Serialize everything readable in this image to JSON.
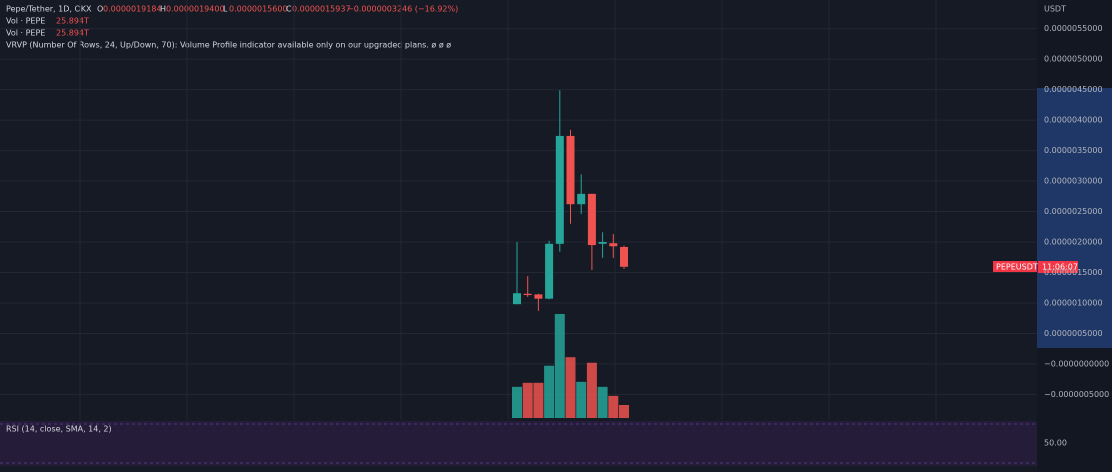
{
  "chart_data": {
    "type": "candlestick",
    "symbol": "Pepe/Tether, 1D, OKX",
    "ohlc_labels": [
      "O",
      "H",
      "L",
      "C"
    ],
    "ohlc_values": [
      "0.0000019184",
      "0.0000019400",
      "0.0000015600",
      "0.0000015937"
    ],
    "change": "−0.0000003246 (−16.92%)",
    "volume_legend": [
      "Vol · PEPE",
      "Vol · PEPE"
    ],
    "volume_value_label": [
      "25.894T",
      "25.894T"
    ],
    "vrvp": "VRVP (Number Of Rows, 24, Up/Down, 70): Volume Profile indicator available only on our upgraded plans.  ø  ø  ø",
    "currency": "USDT",
    "ticker_badge": "PEPEUSDT",
    "countdown": "11:06:07",
    "rsi_title": "RSI (14, close, SMA, 14, 2)",
    "rsi_tick": "50.00",
    "up_color": "#26a69a",
    "down_color": "#ef5350",
    "open": [
      9.8e-07,
      1.15e-06,
      1.14e-06,
      1.07e-06,
      1.97e-06,
      3.74e-06,
      2.62e-06,
      2.79e-06,
      1.97e-06,
      1.98e-06,
      1.9184e-06
    ],
    "high": [
      2e-06,
      1.44e-06,
      1.15e-06,
      2.02e-06,
      4.49e-06,
      3.84e-06,
      3.11e-06,
      2.79e-06,
      2.16e-06,
      2.13e-06,
      1.94e-06
    ],
    "low": [
      9.8e-07,
      1.1e-06,
      8.7e-07,
      1.06e-06,
      1.84e-06,
      2.3e-06,
      2.46e-06,
      1.54e-06,
      1.74e-06,
      1.74e-06,
      1.56e-06
    ],
    "close": [
      1.16e-06,
      1.13e-06,
      1.07e-06,
      1.97e-06,
      3.74e-06,
      2.62e-06,
      2.79e-06,
      1.95e-06,
      2e-06,
      1.93e-06,
      1.5937e-06
    ],
    "volume": [
      62,
      70,
      70,
      104,
      207,
      121,
      72,
      110,
      62,
      44,
      25.894
    ],
    "ylim": [
      -9.2e-07,
      5.97e-06
    ],
    "yticks": [
      {
        "value": 5.5e-06,
        "label": "0.0000055000"
      },
      {
        "value": 5e-06,
        "label": "0.0000050000"
      },
      {
        "value": 4.5e-06,
        "label": "0.0000045000"
      },
      {
        "value": 4e-06,
        "label": "0.0000040000"
      },
      {
        "value": 3.5e-06,
        "label": "0.0000035000"
      },
      {
        "value": 3e-06,
        "label": "0.0000030000"
      },
      {
        "value": 2.5e-06,
        "label": "0.0000025000"
      },
      {
        "value": 2e-06,
        "label": "0.0000020000"
      },
      {
        "value": 1.5e-06,
        "label": "0.0000015000"
      },
      {
        "value": 1e-06,
        "label": "0.0000010000"
      },
      {
        "value": 5e-07,
        "label": "0.0000005000"
      },
      {
        "value": 0,
        "label": "−0.0000000000"
      },
      {
        "value": -5e-07,
        "label": "−0.0000005000"
      }
    ],
    "grid": true
  }
}
